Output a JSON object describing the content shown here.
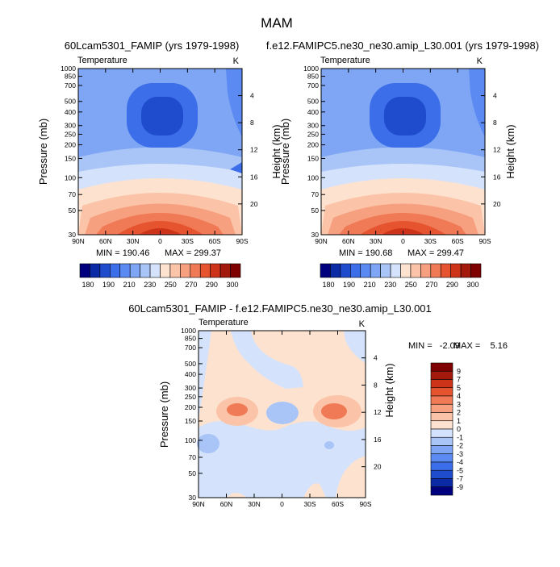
{
  "figure": {
    "season": "MAM"
  },
  "chart_data": [
    {
      "type": "heatmap",
      "title": "60Lcam5301_FAMIP (yrs 1979-1998)",
      "field_label": "Temperature",
      "units": "K",
      "xlabel": "",
      "ylabel": "Pressure (mb)",
      "y2label": "Height (km)",
      "x_ticks": [
        "90N",
        "60N",
        "30N",
        "0",
        "30S",
        "60S",
        "90S"
      ],
      "y_ticks": [
        30,
        50,
        70,
        100,
        150,
        200,
        250,
        300,
        400,
        500,
        700,
        850,
        1000
      ],
      "y_scale": "log",
      "ylim": [
        1000,
        30
      ],
      "y2_ticks": [
        4,
        8,
        12,
        16,
        20
      ],
      "min": "190.46",
      "max": "299.37",
      "min_label": "MIN = 190.46",
      "max_label": "MAX = 299.37",
      "colorbar_levels": [
        180,
        190,
        200,
        210,
        220,
        230,
        240,
        250,
        260,
        270,
        280,
        290,
        300
      ],
      "colorbar_labels": [
        "180",
        "190",
        "210",
        "230",
        "250",
        "270",
        "290",
        "300"
      ],
      "colors": [
        "#00007f",
        "#0a2aa6",
        "#1f4ccc",
        "#3b6ee8",
        "#5b8af2",
        "#7ea6f5",
        "#a9c4f7",
        "#d4e3fb",
        "#fde2d0",
        "#fbc4a8",
        "#f7a080",
        "#f07a55",
        "#e5542f",
        "#cc3318",
        "#a31a0d",
        "#7f0000"
      ]
    },
    {
      "type": "heatmap",
      "title": "f.e12.FAMIPC5.ne30_ne30.amip_L30.001 (yrs 1979-1998)",
      "field_label": "Temperature",
      "units": "K",
      "xlabel": "",
      "ylabel": "Pressure (mb)",
      "y2label": "Height (km)",
      "x_ticks": [
        "90N",
        "60N",
        "30N",
        "0",
        "30S",
        "60S",
        "90S"
      ],
      "y_ticks": [
        30,
        50,
        70,
        100,
        150,
        200,
        250,
        300,
        400,
        500,
        700,
        850,
        1000
      ],
      "y_scale": "log",
      "ylim": [
        1000,
        30
      ],
      "y2_ticks": [
        4,
        8,
        12,
        16,
        20
      ],
      "min": "190.68",
      "max": "299.47",
      "min_label": "MIN = 190.68",
      "max_label": "MAX = 299.47",
      "colorbar_levels": [
        180,
        190,
        200,
        210,
        220,
        230,
        240,
        250,
        260,
        270,
        280,
        290,
        300
      ],
      "colorbar_labels": [
        "180",
        "190",
        "210",
        "230",
        "250",
        "270",
        "290",
        "300"
      ],
      "colors": [
        "#00007f",
        "#0a2aa6",
        "#1f4ccc",
        "#3b6ee8",
        "#5b8af2",
        "#7ea6f5",
        "#a9c4f7",
        "#d4e3fb",
        "#fde2d0",
        "#fbc4a8",
        "#f7a080",
        "#f07a55",
        "#e5542f",
        "#cc3318",
        "#a31a0d",
        "#7f0000"
      ]
    },
    {
      "type": "heatmap",
      "title": "60Lcam5301_FAMIP - f.e12.FAMIPC5.ne30_ne30.amip_L30.001",
      "field_label": "Temperature",
      "units": "K",
      "xlabel": "",
      "ylabel": "Pressure (mb)",
      "y2label": "Height (km)",
      "x_ticks": [
        "90N",
        "60N",
        "30N",
        "0",
        "30S",
        "60S",
        "90S"
      ],
      "y_ticks": [
        30,
        50,
        70,
        100,
        150,
        200,
        250,
        300,
        400,
        500,
        700,
        850,
        1000
      ],
      "y_scale": "log",
      "ylim": [
        1000,
        30
      ],
      "y2_ticks": [
        4,
        8,
        12,
        16,
        20
      ],
      "min": "-2.09",
      "max": "5.16",
      "min_label": "MIN =   -2.09",
      "max_label": "MAX =    5.16",
      "colorbar_levels": [
        -9,
        -7,
        -5,
        -4,
        -3,
        -2,
        -1,
        0,
        1,
        2,
        3,
        4,
        5,
        7,
        9
      ],
      "colorbar_labels": [
        "-9",
        "-7",
        "-5",
        "-4",
        "-3",
        "-2",
        "-1",
        "0",
        "1",
        "2",
        "3",
        "4",
        "5",
        "7",
        "9"
      ],
      "colors": [
        "#00007f",
        "#0a2aa6",
        "#1f4ccc",
        "#3b6ee8",
        "#5b8af2",
        "#7ea6f5",
        "#a9c4f7",
        "#d4e3fb",
        "#fde2d0",
        "#fbc4a8",
        "#f7a080",
        "#f07a55",
        "#e5542f",
        "#cc3318",
        "#a31a0d",
        "#7f0000"
      ]
    }
  ]
}
